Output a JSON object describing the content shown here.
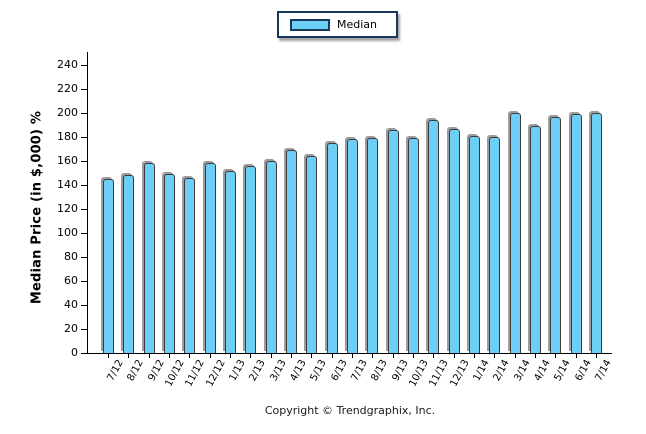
{
  "legend": {
    "label": "Median"
  },
  "chart_data": {
    "type": "bar",
    "title": "",
    "series": [
      {
        "name": "Median",
        "values": [
          145,
          148,
          158,
          149,
          146,
          158,
          152,
          156,
          160,
          169,
          164,
          175,
          178,
          179,
          186,
          179,
          194,
          187,
          181,
          180,
          200,
          189,
          197,
          199,
          200
        ]
      }
    ],
    "categories": [
      "7/12",
      "8/12",
      "9/12",
      "10/12",
      "11/12",
      "12/12",
      "1/13",
      "2/13",
      "3/13",
      "4/13",
      "5/13",
      "6/13",
      "7/13",
      "8/13",
      "9/13",
      "10/13",
      "11/13",
      "12/13",
      "1/14",
      "2/14",
      "3/14",
      "4/14",
      "5/14",
      "6/14",
      "7/14"
    ],
    "xlabel": "",
    "ylabel": "Median Price (in $,000) %",
    "ylim": [
      0,
      250
    ],
    "yticks": [
      0,
      20,
      40,
      60,
      80,
      100,
      120,
      140,
      160,
      180,
      200,
      220,
      240
    ],
    "grid": false,
    "legend_position": "top-center",
    "bar_color": "#6DCFF6",
    "bar_border_color": "#3b3b3b",
    "legend_border_color": "#17375E"
  },
  "footer": {
    "copyright": "Copyright © Trendgraphix, Inc."
  }
}
